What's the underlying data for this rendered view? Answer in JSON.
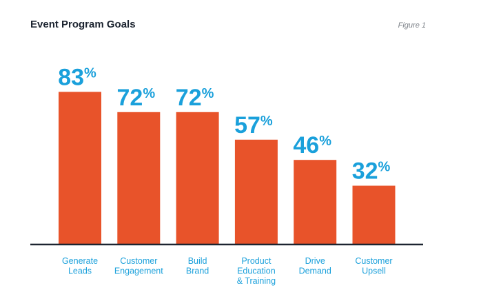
{
  "chart_data": {
    "type": "bar",
    "title": "Event Program Goals",
    "figure_label": "Figure 1",
    "categories": [
      [
        "Generate",
        "Leads"
      ],
      [
        "Customer",
        "Engagement"
      ],
      [
        "Build",
        "Brand"
      ],
      [
        "Product",
        "Education",
        "& Training"
      ],
      [
        "Drive",
        "Demand"
      ],
      [
        "Customer",
        "Upsell"
      ]
    ],
    "values": [
      83,
      72,
      72,
      57,
      46,
      32
    ],
    "value_suffix": "%",
    "ylim": [
      0,
      100
    ],
    "grid": false,
    "legend": "none",
    "colors": {
      "bar": "#e8532a",
      "label": "#1aa0db",
      "axis": "#1c2430",
      "title": "#1c2430",
      "figure_label": "#7a7f86"
    }
  }
}
